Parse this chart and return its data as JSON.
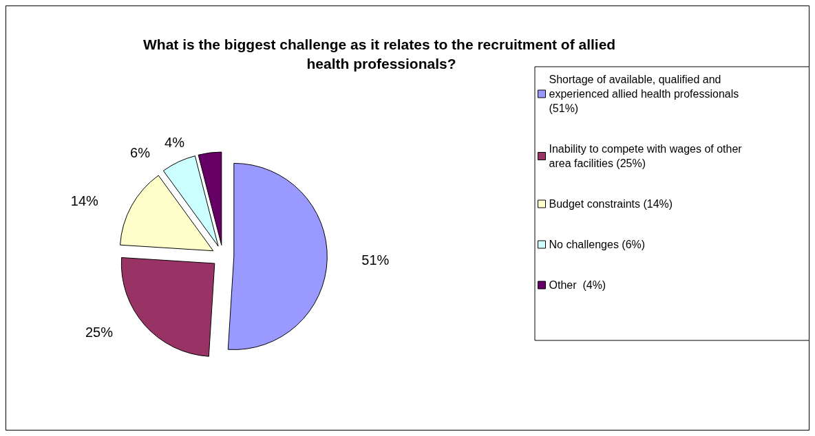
{
  "chart_data": {
    "type": "pie",
    "title": "What is the biggest challenge as it relates to the recruitment of allied health professionals?",
    "categories": [
      "Shortage of available, qualified and experienced allied health professionals (51%)",
      "Inability to compete with wages of other area facilities (25%)",
      "Budget constraints (14%)",
      "No challenges (6%)",
      "Other  (4%)"
    ],
    "values": [
      51,
      25,
      14,
      6,
      4
    ],
    "colors": [
      "#9999ff",
      "#993366",
      "#ffffcc",
      "#ccffff",
      "#660066"
    ],
    "value_labels": [
      "51%",
      "25%",
      "14%",
      "6%",
      "4%"
    ],
    "legend": "right"
  }
}
